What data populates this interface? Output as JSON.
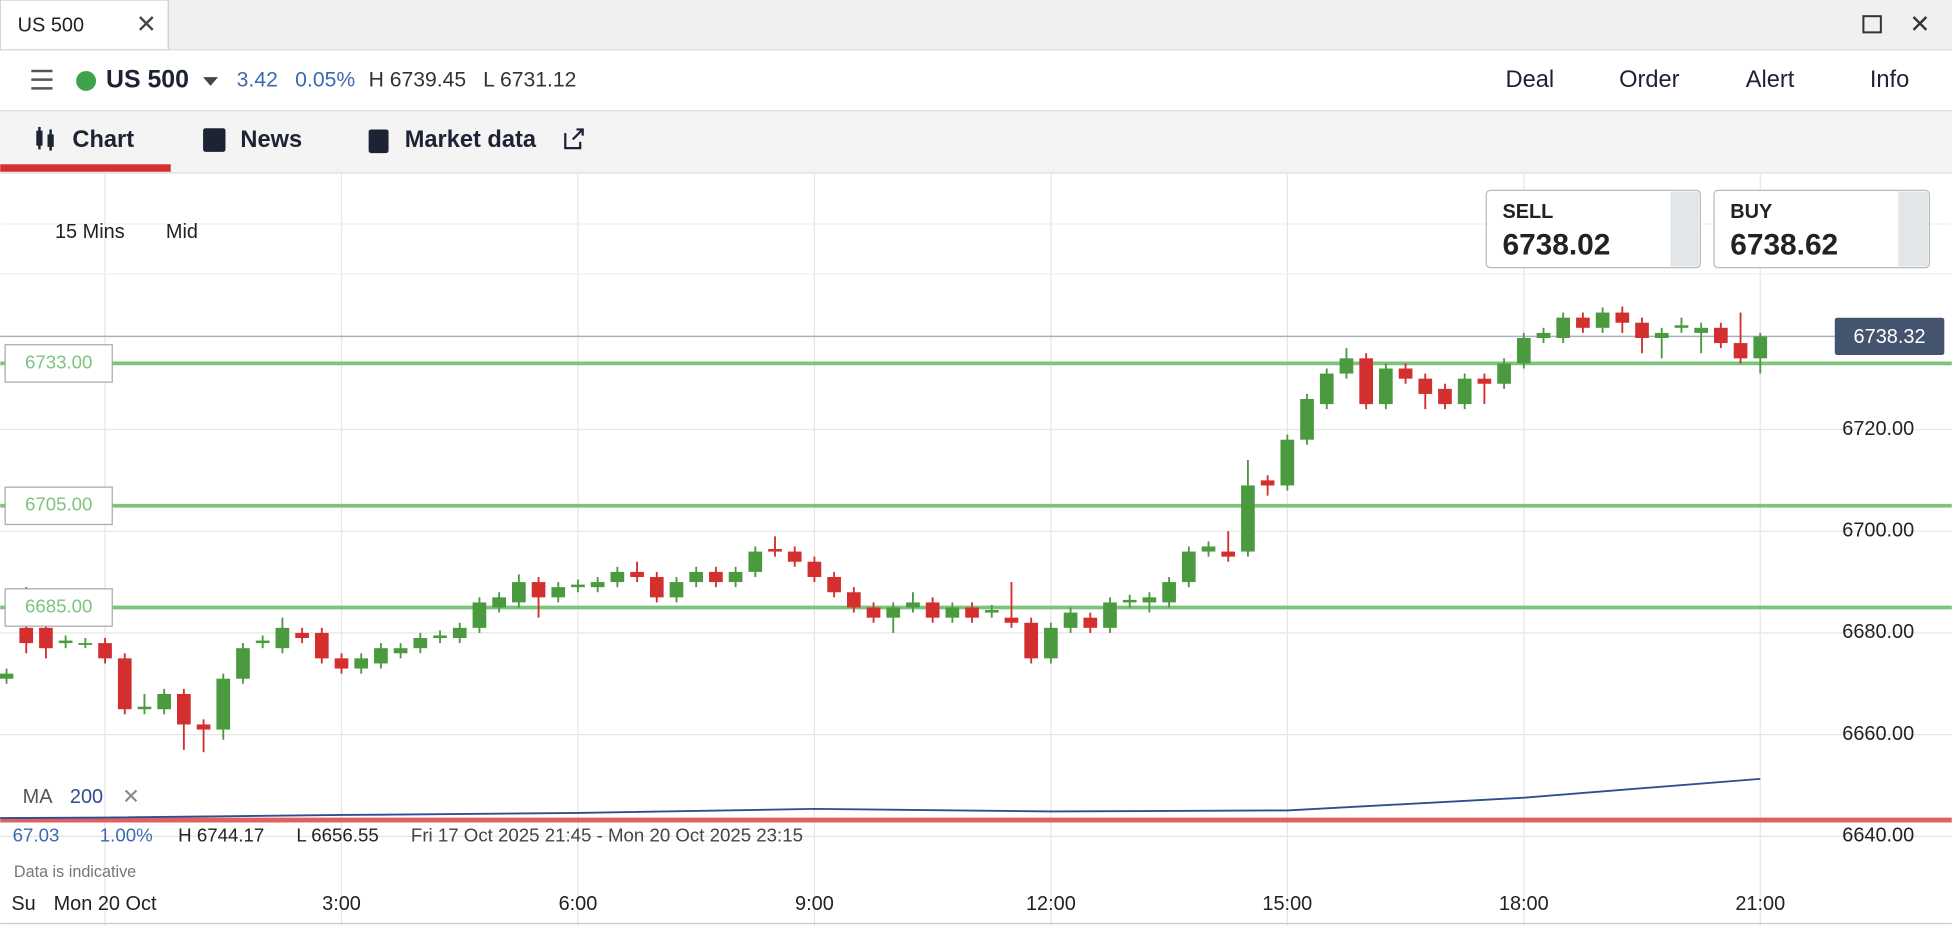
{
  "window": {
    "tab": "US 500"
  },
  "header": {
    "instrument": "US 500",
    "change": "3.42",
    "change_pct": "0.05%",
    "high": "H 6739.45",
    "low": "L 6731.12",
    "actions": [
      "Deal",
      "Order",
      "Alert",
      "Info"
    ]
  },
  "tabs": [
    "Chart",
    "News",
    "Market data"
  ],
  "toolbar": {
    "interval": "15 Mins",
    "price_type": "Mid"
  },
  "quote": {
    "sell_label": "SELL",
    "sell": "6738.02",
    "buy_label": "BUY",
    "buy": "6738.62"
  },
  "indicator": {
    "name": "MA",
    "period": "200",
    "value": "67.03",
    "pct": "1.00%",
    "range_high": "H 6744.17",
    "range_low": "L 6656.55",
    "range": "Fri 17 Oct 2025 21:45 - Mon 20 Oct 2025 23:15",
    "note": "Data is indicative",
    "partial_day": "Su"
  },
  "chart_data": {
    "type": "candlestick",
    "up_color": "#4c9a3f",
    "down_color": "#d32f2f",
    "grid": true,
    "xlim": [
      -1.33,
      23.43
    ],
    "ylim": [
      6630.2,
      6770.2
    ],
    "xticks": [
      {
        "value": 0,
        "label": "Mon 20 Oct"
      },
      {
        "value": 3,
        "label": "3:00"
      },
      {
        "value": 6,
        "label": "6:00"
      },
      {
        "value": 9,
        "label": "9:00"
      },
      {
        "value": 12,
        "label": "12:00"
      },
      {
        "value": 15,
        "label": "15:00"
      },
      {
        "value": 18,
        "label": "18:00"
      },
      {
        "value": 21,
        "label": "21:00"
      }
    ],
    "yticks": [
      {
        "value": 6640,
        "label": "6640.00"
      },
      {
        "value": 6660,
        "label": "6660.00"
      },
      {
        "value": 6680,
        "label": "6680.00"
      },
      {
        "value": 6700,
        "label": "6700.00"
      },
      {
        "value": 6720,
        "label": "6720.00"
      }
    ],
    "x": [
      -1.25,
      -1,
      -0.75,
      -0.5,
      -0.25,
      0,
      0.25,
      0.5,
      0.75,
      1,
      1.25,
      1.5,
      1.75,
      2,
      2.25,
      2.5,
      2.75,
      3,
      3.25,
      3.5,
      3.75,
      4,
      4.25,
      4.5,
      4.75,
      5,
      5.25,
      5.5,
      5.75,
      6,
      6.25,
      6.5,
      6.75,
      7,
      7.25,
      7.5,
      7.75,
      8,
      8.25,
      8.5,
      8.75,
      9,
      9.25,
      9.5,
      9.75,
      10,
      10.25,
      10.5,
      10.75,
      11,
      11.25,
      11.5,
      11.75,
      12,
      12.25,
      12.5,
      12.75,
      13,
      13.25,
      13.5,
      13.75,
      14,
      14.25,
      14.5,
      14.75,
      15,
      15.25,
      15.5,
      15.75,
      16,
      16.25,
      16.5,
      16.75,
      17,
      17.25,
      17.5,
      17.75,
      18,
      18.25,
      18.5,
      18.75,
      19,
      19.25,
      19.5,
      19.75,
      20,
      20.25,
      20.5,
      20.75,
      21
    ],
    "open": [
      6671,
      6681,
      6681,
      6678,
      6678,
      6678,
      6675,
      6665,
      6665,
      6668,
      6662,
      6661,
      6671,
      6678,
      6677,
      6680,
      6680,
      6675,
      6673,
      6674,
      6676,
      6677,
      6679,
      6679,
      6681,
      6685,
      6686,
      6690,
      6687,
      6689,
      6689,
      6690,
      6692,
      6691,
      6687,
      6690,
      6692,
      6690,
      6692,
      6696.5,
      6696,
      6694,
      6691,
      6688,
      6685,
      6683,
      6685,
      6686,
      6683,
      6685,
      6684,
      6683,
      6682,
      6675,
      6681,
      6683,
      6681,
      6686,
      6686,
      6686,
      6690,
      6696,
      6696,
      6696,
      6710,
      6709,
      6718,
      6725,
      6731,
      6734,
      6725,
      6732,
      6730,
      6728,
      6725,
      6730,
      6729,
      6733,
      6738,
      6738,
      6742,
      6740,
      6743,
      6741,
      6738,
      6740,
      6739,
      6740,
      6737,
      6734
    ],
    "high": [
      6673,
      6689,
      6682,
      6679.5,
      6679,
      6679,
      6676,
      6668,
      6669,
      6669,
      6663,
      6672,
      6678,
      6679.5,
      6683,
      6681,
      6681,
      6676,
      6676,
      6678,
      6678,
      6680,
      6680.5,
      6682,
      6687,
      6688,
      6691.5,
      6691,
      6690,
      6690.5,
      6691,
      6693,
      6694,
      6692,
      6691,
      6693,
      6693,
      6693,
      6697,
      6699,
      6697,
      6695,
      6692,
      6689,
      6686,
      6686,
      6688,
      6687,
      6686,
      6686,
      6685.5,
      6690,
      6683,
      6682,
      6685,
      6684,
      6687,
      6687.5,
      6688,
      6691,
      6697,
      6698,
      6700,
      6714,
      6711,
      6719,
      6727,
      6732,
      6736,
      6735,
      6733,
      6733,
      6731,
      6729,
      6731,
      6731,
      6734,
      6739,
      6740,
      6743,
      6743,
      6744,
      6744.17,
      6742,
      6740,
      6742,
      6741,
      6741,
      6743,
      6739
    ],
    "low": [
      6670,
      6676,
      6675,
      6677,
      6677,
      6674,
      6664,
      6664,
      6664,
      6657,
      6656.55,
      6659,
      6670,
      6677,
      6676,
      6678,
      6674,
      6672,
      6672,
      6673,
      6675,
      6676,
      6678,
      6678,
      6680,
      6684,
      6685,
      6683,
      6686,
      6688,
      6688,
      6689,
      6690,
      6686,
      6686,
      6689,
      6689,
      6689,
      6691,
      6695,
      6693,
      6690,
      6687,
      6684,
      6682,
      6680,
      6684,
      6682,
      6682,
      6682,
      6683,
      6681,
      6674,
      6674,
      6680,
      6680,
      6680,
      6685,
      6684,
      6685,
      6689,
      6695,
      6694,
      6695,
      6707,
      6708,
      6717,
      6724,
      6730,
      6724,
      6724,
      6729,
      6724,
      6724,
      6724,
      6725,
      6728,
      6732,
      6737,
      6737,
      6739,
      6739,
      6739,
      6735,
      6734,
      6739,
      6735,
      6736,
      6733,
      6731
    ],
    "close": [
      6672,
      6678,
      6677,
      6678.5,
      6678,
      6675,
      6665,
      6665.5,
      6668,
      6662,
      6661,
      6671,
      6677,
      6678.5,
      6681,
      6679,
      6675,
      6673,
      6675,
      6677,
      6677,
      6679,
      6679.5,
      6681,
      6686,
      6687,
      6690,
      6687,
      6689,
      6689.5,
      6690,
      6692,
      6691,
      6687,
      6690,
      6692,
      6690,
      6692,
      6696,
      6696,
      6694,
      6691,
      6688,
      6685,
      6683,
      6685,
      6686,
      6683,
      6685,
      6683,
      6684.5,
      6682,
      6675,
      6681,
      6684,
      6681,
      6686,
      6686.5,
      6687,
      6690,
      6696,
      6697,
      6695,
      6709,
      6709,
      6718,
      6726,
      6731,
      6734,
      6725,
      6732,
      6730,
      6727,
      6725,
      6730,
      6729,
      6733,
      6738,
      6739,
      6742,
      6740,
      6743,
      6741,
      6738,
      6739,
      6740.5,
      6740,
      6737,
      6734,
      6738.32
    ],
    "levels": [
      {
        "value": 6733,
        "label": "6733.00"
      },
      {
        "value": 6705,
        "label": "6705.00"
      },
      {
        "value": 6685,
        "label": "6685.00"
      }
    ],
    "level_color": "#7cc47c",
    "last_price": {
      "value": 6738.32,
      "label": "6738.32"
    },
    "ma": {
      "color": "#2e4f8f",
      "x": [
        -1.33,
        0,
        3,
        6,
        9,
        12,
        15,
        18,
        21
      ],
      "values": [
        6643.6,
        6643.7,
        6644.2,
        6644.6,
        6645.4,
        6644.9,
        6645.1,
        6647.6,
        6651.3
      ]
    },
    "band": {
      "color": "#e06060",
      "value": 6643.2
    }
  }
}
